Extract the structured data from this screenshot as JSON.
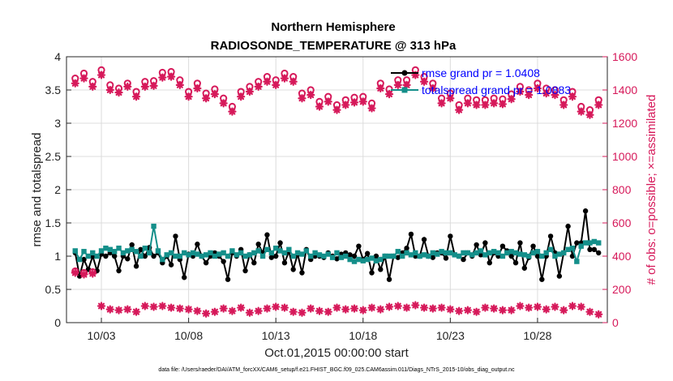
{
  "chart_data": {
    "type": "line",
    "title": "Northern Hemisphere",
    "subtitle": "RADIOSONDE_TEMPERATURE @ 313 hPa",
    "xlabel": "Oct.01,2015 00:00:00 start",
    "ylabel_left": "rmse and totalspread",
    "ylabel_right": "# of obs: o=possible; ×=assimilated",
    "x_tick_labels": [
      "10/03",
      "10/08",
      "10/13",
      "10/18",
      "10/23",
      "10/28"
    ],
    "x_tick_days": [
      3,
      8,
      13,
      18,
      23,
      28
    ],
    "xlim": [
      1.0,
      32.0
    ],
    "ylim_left": [
      0,
      4
    ],
    "ylim_right": [
      0,
      1600
    ],
    "y_ticks_left": [
      "0",
      "0.5",
      "1",
      "1.5",
      "2",
      "2.5",
      "3",
      "3.5",
      "4"
    ],
    "y_ticks_right": [
      "0",
      "200",
      "400",
      "600",
      "800",
      "1000",
      "1200",
      "1400",
      "1600"
    ],
    "footnote": "data file: /Users/raeder/DAI/ATM_forcXX/CAM6_setup/f.e21.FHIST_BGC.f09_025.CAM6assim.011/Diags_NTrS_2015-10/obs_diag_output.nc",
    "series": [
      {
        "name": "rmse grand pr = 1.0408",
        "color": "#000000",
        "x": [
          1.5,
          1.75,
          2.0,
          2.25,
          2.5,
          2.75,
          3.0,
          3.25,
          3.5,
          3.75,
          4.0,
          4.25,
          4.5,
          4.75,
          5.0,
          5.25,
          5.5,
          5.75,
          6.0,
          6.25,
          6.5,
          6.75,
          7.0,
          7.25,
          7.5,
          7.75,
          8.0,
          8.25,
          8.5,
          8.75,
          9.0,
          9.25,
          9.5,
          9.75,
          10.0,
          10.25,
          10.5,
          10.75,
          11.0,
          11.25,
          11.5,
          11.75,
          12.0,
          12.25,
          12.5,
          12.75,
          13.0,
          13.25,
          13.5,
          13.75,
          14.0,
          14.25,
          14.5,
          14.75,
          15.0,
          15.25,
          15.5,
          15.75,
          16.0,
          16.25,
          16.5,
          16.75,
          17.0,
          17.25,
          17.5,
          17.75,
          18.0,
          18.25,
          18.5,
          18.75,
          19.0,
          19.25,
          19.5,
          19.75,
          20.0,
          20.25,
          20.5,
          20.75,
          21.0,
          21.25,
          21.5,
          21.75,
          22.0,
          22.25,
          22.5,
          22.75,
          23.0,
          23.25,
          23.5,
          23.75,
          24.0,
          24.25,
          24.5,
          24.75,
          25.0,
          25.25,
          25.5,
          25.75,
          26.0,
          26.25,
          26.5,
          26.75,
          27.0,
          27.25,
          27.5,
          27.75,
          28.0,
          28.25,
          28.5,
          28.75,
          29.0,
          29.25,
          29.5,
          29.75,
          30.0,
          30.25,
          30.5,
          30.75,
          31.0,
          31.25,
          31.5
        ],
        "values": [
          1.05,
          0.7,
          0.95,
          0.8,
          1.0,
          0.78,
          1.03,
          1.0,
          1.05,
          1.0,
          0.78,
          1.0,
          0.96,
          1.17,
          0.85,
          1.1,
          1.0,
          1.13,
          1.0,
          1.05,
          0.9,
          1.0,
          0.87,
          1.3,
          0.95,
          0.68,
          1.03,
          1.0,
          1.18,
          1.0,
          0.9,
          1.0,
          1.05,
          1.0,
          0.92,
          0.65,
          1.05,
          1.0,
          1.1,
          0.78,
          1.02,
          0.9,
          1.18,
          1.05,
          1.32,
          0.98,
          1.0,
          1.2,
          0.9,
          1.07,
          0.8,
          1.03,
          0.75,
          1.1,
          0.95,
          1.0,
          1.0,
          0.98,
          1.05,
          1.0,
          0.96,
          1.03,
          1.05,
          1.02,
          1.0,
          1.15,
          0.95,
          1.04,
          0.75,
          1.0,
          0.8,
          1.0,
          0.65,
          1.0,
          0.98,
          1.05,
          1.12,
          1.33,
          1.0,
          1.0,
          1.25,
          1.0,
          0.98,
          1.05,
          1.05,
          0.97,
          1.3,
          1.02,
          1.0,
          0.95,
          1.05,
          1.0,
          1.17,
          1.02,
          1.2,
          0.9,
          1.05,
          1.0,
          1.15,
          1.08,
          1.0,
          0.9,
          1.2,
          0.82,
          0.98,
          1.15,
          1.0,
          0.65,
          1.0,
          1.3,
          1.05,
          0.7,
          1.05,
          1.45,
          1.0,
          1.2,
          1.2,
          1.68,
          1.1,
          1.1,
          1.05
        ]
      },
      {
        "name": "totalspread grand pr = 1.0883",
        "color": "#148f8a",
        "x": [
          1.5,
          1.75,
          2.0,
          2.25,
          2.5,
          2.75,
          3.0,
          3.25,
          3.5,
          3.75,
          4.0,
          4.25,
          4.5,
          4.75,
          5.0,
          5.25,
          5.5,
          5.75,
          6.0,
          6.25,
          6.5,
          6.75,
          7.0,
          7.25,
          7.5,
          7.75,
          8.0,
          8.25,
          8.5,
          8.75,
          9.0,
          9.25,
          9.5,
          9.75,
          10.0,
          10.25,
          10.5,
          10.75,
          11.0,
          11.25,
          11.5,
          11.75,
          12.0,
          12.25,
          12.5,
          12.75,
          13.0,
          13.25,
          13.5,
          13.75,
          14.0,
          14.25,
          14.5,
          14.75,
          15.0,
          15.25,
          15.5,
          15.75,
          16.0,
          16.25,
          16.5,
          16.75,
          17.0,
          17.25,
          17.5,
          17.75,
          18.0,
          18.25,
          18.5,
          18.75,
          19.0,
          19.25,
          19.5,
          19.75,
          20.0,
          20.25,
          20.5,
          20.75,
          21.0,
          21.25,
          21.5,
          21.75,
          22.0,
          22.25,
          22.5,
          22.75,
          23.0,
          23.25,
          23.5,
          23.75,
          24.0,
          24.25,
          24.5,
          24.75,
          25.0,
          25.25,
          25.5,
          25.75,
          26.0,
          26.25,
          26.5,
          26.75,
          27.0,
          27.25,
          27.5,
          27.75,
          28.0,
          28.25,
          28.5,
          28.75,
          29.0,
          29.25,
          29.5,
          29.75,
          30.0,
          30.25,
          30.5,
          30.75,
          31.0,
          31.25,
          31.5
        ],
        "values": [
          1.08,
          0.95,
          1.07,
          1.0,
          1.05,
          1.0,
          1.08,
          1.12,
          1.1,
          1.07,
          1.12,
          1.05,
          1.08,
          1.1,
          1.07,
          1.0,
          1.12,
          1.05,
          1.45,
          1.08,
          0.95,
          1.02,
          1.05,
          1.0,
          1.0,
          1.05,
          1.02,
          1.05,
          1.03,
          1.0,
          1.02,
          1.05,
          1.0,
          1.03,
          1.05,
          1.0,
          1.08,
          1.02,
          1.05,
          1.0,
          1.02,
          1.05,
          1.08,
          1.0,
          1.1,
          1.05,
          1.12,
          1.08,
          1.05,
          1.1,
          1.0,
          1.05,
          1.03,
          1.08,
          1.0,
          1.05,
          1.02,
          1.0,
          1.03,
          0.98,
          1.05,
          0.98,
          1.0,
          0.95,
          0.92,
          0.95,
          0.93,
          0.95,
          0.97,
          0.93,
          0.95,
          1.0,
          1.0,
          1.0,
          1.07,
          1.0,
          1.05,
          1.02,
          1.05,
          1.0,
          1.02,
          1.0,
          1.05,
          1.03,
          1.07,
          1.05,
          1.05,
          1.02,
          1.0,
          1.05,
          1.05,
          1.02,
          1.05,
          1.08,
          1.02,
          1.05,
          1.07,
          1.05,
          1.0,
          1.05,
          1.07,
          1.05,
          1.03,
          1.02,
          1.0,
          1.05,
          1.07,
          1.0,
          1.05,
          1.1,
          1.0,
          1.03,
          1.05,
          1.1,
          1.12,
          0.92,
          1.15,
          1.2,
          1.2,
          1.22,
          1.2
        ]
      },
      {
        "name": "possible obs (o)",
        "color": "#d6195a",
        "marker": "o",
        "axis": "right",
        "x": [
          1.5,
          2.0,
          2.5,
          3.0,
          3.5,
          4.0,
          4.5,
          5.0,
          5.5,
          6.0,
          6.5,
          7.0,
          7.5,
          8.0,
          8.5,
          9.0,
          9.5,
          10.0,
          10.5,
          11.0,
          11.5,
          12.0,
          12.5,
          13.0,
          13.5,
          14.0,
          14.5,
          15.0,
          15.5,
          16.0,
          16.5,
          17.0,
          17.5,
          18.0,
          18.5,
          19.0,
          19.5,
          20.0,
          20.5,
          21.0,
          21.5,
          22.0,
          22.5,
          23.0,
          23.5,
          24.0,
          24.5,
          25.0,
          25.5,
          26.0,
          26.5,
          27.0,
          27.5,
          28.0,
          28.5,
          29.0,
          29.5,
          30.0,
          30.5,
          31.0,
          31.5
        ],
        "values": [
          1470,
          1500,
          1450,
          1520,
          1430,
          1410,
          1440,
          1390,
          1450,
          1455,
          1505,
          1510,
          1460,
          1390,
          1440,
          1380,
          1405,
          1350,
          1300,
          1390,
          1420,
          1450,
          1480,
          1460,
          1500,
          1480,
          1380,
          1400,
          1330,
          1360,
          1310,
          1340,
          1355,
          1360,
          1320,
          1440,
          1405,
          1460,
          1460,
          1520,
          1480,
          1440,
          1350,
          1380,
          1310,
          1350,
          1340,
          1340,
          1350,
          1345,
          1375,
          1420,
          1400,
          1440,
          1410,
          1400,
          1340,
          1390,
          1300,
          1280,
          1340
        ]
      },
      {
        "name": "assimilated obs (x)",
        "color": "#d6195a",
        "marker": "*",
        "axis": "right",
        "x": [
          1.5,
          2.0,
          2.5,
          3.0,
          3.5,
          4.0,
          4.5,
          5.0,
          5.5,
          6.0,
          6.5,
          7.0,
          7.5,
          8.0,
          8.5,
          9.0,
          9.5,
          10.0,
          10.5,
          11.0,
          11.5,
          12.0,
          12.5,
          13.0,
          13.5,
          14.0,
          14.5,
          15.0,
          15.5,
          16.0,
          16.5,
          17.0,
          17.5,
          18.0,
          18.5,
          19.0,
          19.5,
          20.0,
          20.5,
          21.0,
          21.5,
          22.0,
          22.5,
          23.0,
          23.5,
          24.0,
          24.5,
          25.0,
          25.5,
          26.0,
          26.5,
          27.0,
          27.5,
          28.0,
          28.5,
          29.0,
          29.5,
          30.0,
          30.5,
          31.0,
          31.5
        ],
        "values": [
          1440,
          1470,
          1420,
          1490,
          1400,
          1385,
          1420,
          1360,
          1420,
          1425,
          1475,
          1480,
          1430,
          1360,
          1410,
          1350,
          1375,
          1320,
          1270,
          1360,
          1390,
          1420,
          1450,
          1430,
          1470,
          1450,
          1350,
          1370,
          1300,
          1330,
          1280,
          1310,
          1325,
          1330,
          1290,
          1410,
          1375,
          1430,
          1430,
          1490,
          1450,
          1410,
          1320,
          1350,
          1280,
          1320,
          1310,
          1310,
          1320,
          1315,
          1345,
          1390,
          1370,
          1410,
          1380,
          1370,
          1310,
          1360,
          1270,
          1250,
          1310
        ]
      },
      {
        "name": "low possible obs (o)",
        "color": "#d6195a",
        "marker": "o",
        "axis": "right",
        "x": [
          1.5,
          2.0,
          2.5
        ],
        "values": [
          310,
          300,
          305
        ]
      },
      {
        "name": "low assimilated obs (x)",
        "color": "#d6195a",
        "marker": "*",
        "axis": "right",
        "x": [
          1.5,
          2.0,
          2.5,
          3.0,
          3.5,
          4.0,
          4.5,
          5.0,
          5.5,
          6.0,
          6.5,
          7.0,
          7.5,
          8.0,
          8.5,
          9.0,
          9.5,
          10.0,
          10.5,
          11.0,
          11.5,
          12.0,
          12.5,
          13.0,
          13.5,
          14.0,
          14.5,
          15.0,
          15.5,
          16.0,
          16.5,
          17.0,
          17.5,
          18.0,
          18.5,
          19.0,
          19.5,
          20.0,
          20.5,
          21.0,
          21.5,
          22.0,
          22.5,
          23.0,
          23.5,
          24.0,
          24.5,
          25.0,
          25.5,
          26.0,
          26.5,
          27.0,
          27.5,
          28.0,
          28.5,
          29.0,
          29.5,
          30.0,
          30.5,
          31.0,
          31.5
        ],
        "values": [
          300,
          290,
          295,
          100,
          80,
          75,
          80,
          65,
          100,
          95,
          100,
          90,
          85,
          80,
          70,
          55,
          65,
          85,
          70,
          90,
          60,
          70,
          85,
          95,
          90,
          65,
          60,
          85,
          70,
          65,
          90,
          80,
          85,
          75,
          90,
          80,
          95,
          100,
          90,
          105,
          90,
          85,
          90,
          80,
          70,
          75,
          65,
          90,
          85,
          75,
          75,
          100,
          90,
          95,
          80,
          95,
          75,
          100,
          95,
          65,
          50
        ]
      }
    ]
  }
}
